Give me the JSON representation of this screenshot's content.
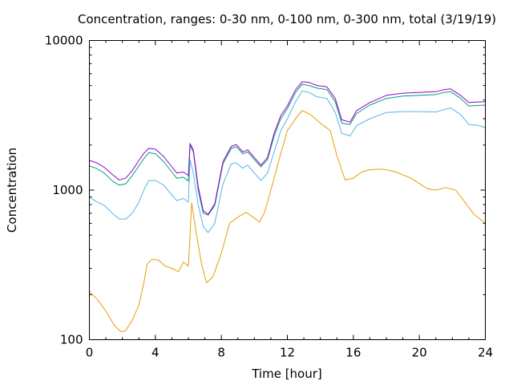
{
  "chart_data": {
    "type": "line",
    "title": "Concentration, ranges: 0-30 nm, 0-100 nm, 0-300 nm, total (3/19/19)",
    "xlabel": "Time [hour]",
    "ylabel": "Concentration",
    "xlim": [
      0,
      24
    ],
    "ylim": [
      100,
      10000
    ],
    "yscale": "log",
    "grid": false,
    "xticks": [
      0,
      4,
      8,
      12,
      16,
      20,
      24
    ],
    "xtick_labels": [
      "0",
      "4",
      "8",
      "12",
      "16",
      "20",
      "24"
    ],
    "yticks": [
      100,
      1000,
      10000
    ],
    "ytick_labels": [
      "100",
      "1000",
      "10000"
    ],
    "series": [
      {
        "color": "#e69f00",
        "points": [
          [
            0,
            210
          ],
          [
            0.5,
            185
          ],
          [
            1,
            155
          ],
          [
            1.5,
            125
          ],
          [
            1.9,
            113
          ],
          [
            2.2,
            115
          ],
          [
            2.6,
            135
          ],
          [
            3,
            170
          ],
          [
            3.3,
            240
          ],
          [
            3.5,
            320
          ],
          [
            3.8,
            345
          ],
          [
            4.2,
            340
          ],
          [
            4.6,
            310
          ],
          [
            5,
            300
          ],
          [
            5.4,
            285
          ],
          [
            5.7,
            330
          ],
          [
            6,
            310
          ],
          [
            6.2,
            820
          ],
          [
            6.5,
            500
          ],
          [
            6.8,
            320
          ],
          [
            7.1,
            240
          ],
          [
            7.5,
            265
          ],
          [
            8,
            380
          ],
          [
            8.5,
            600
          ],
          [
            9,
            660
          ],
          [
            9.5,
            710
          ],
          [
            10,
            650
          ],
          [
            10.3,
            610
          ],
          [
            10.6,
            700
          ],
          [
            11,
            1000
          ],
          [
            11.5,
            1600
          ],
          [
            12,
            2500
          ],
          [
            12.5,
            3000
          ],
          [
            12.9,
            3400
          ],
          [
            13.4,
            3200
          ],
          [
            14,
            2800
          ],
          [
            14.6,
            2500
          ],
          [
            15,
            1700
          ],
          [
            15.5,
            1170
          ],
          [
            16,
            1200
          ],
          [
            16.5,
            1320
          ],
          [
            17,
            1370
          ],
          [
            17.8,
            1380
          ],
          [
            18.5,
            1330
          ],
          [
            19.5,
            1200
          ],
          [
            20.5,
            1020
          ],
          [
            21,
            1000
          ],
          [
            21.6,
            1040
          ],
          [
            22.2,
            1000
          ],
          [
            22.8,
            820
          ],
          [
            23.3,
            690
          ],
          [
            24,
            600
          ]
        ]
      },
      {
        "color": "#56b4e9",
        "points": [
          [
            0,
            900
          ],
          [
            0.4,
            840
          ],
          [
            0.9,
            790
          ],
          [
            1.4,
            700
          ],
          [
            1.8,
            640
          ],
          [
            2.2,
            640
          ],
          [
            2.6,
            700
          ],
          [
            3,
            830
          ],
          [
            3.3,
            1000
          ],
          [
            3.6,
            1160
          ],
          [
            4,
            1160
          ],
          [
            4.5,
            1080
          ],
          [
            5,
            930
          ],
          [
            5.3,
            850
          ],
          [
            5.7,
            880
          ],
          [
            6,
            830
          ],
          [
            6.1,
            1600
          ],
          [
            6.3,
            1300
          ],
          [
            6.6,
            800
          ],
          [
            6.9,
            570
          ],
          [
            7.2,
            520
          ],
          [
            7.6,
            600
          ],
          [
            8.1,
            1100
          ],
          [
            8.6,
            1500
          ],
          [
            8.9,
            1520
          ],
          [
            9.3,
            1400
          ],
          [
            9.6,
            1470
          ],
          [
            10,
            1300
          ],
          [
            10.4,
            1160
          ],
          [
            10.8,
            1300
          ],
          [
            11.2,
            1800
          ],
          [
            11.6,
            2500
          ],
          [
            12,
            3000
          ],
          [
            12.5,
            3900
          ],
          [
            12.9,
            4600
          ],
          [
            13.3,
            4500
          ],
          [
            13.8,
            4200
          ],
          [
            14.4,
            4100
          ],
          [
            14.9,
            3300
          ],
          [
            15.3,
            2400
          ],
          [
            15.8,
            2300
          ],
          [
            16.2,
            2700
          ],
          [
            17,
            3000
          ],
          [
            18,
            3300
          ],
          [
            19,
            3350
          ],
          [
            20,
            3350
          ],
          [
            21,
            3330
          ],
          [
            21.5,
            3450
          ],
          [
            21.9,
            3550
          ],
          [
            22.5,
            3200
          ],
          [
            23,
            2750
          ],
          [
            23.5,
            2720
          ],
          [
            24,
            2620
          ]
        ]
      },
      {
        "color": "#009e73",
        "points": [
          [
            0,
            1450
          ],
          [
            0.4,
            1400
          ],
          [
            0.9,
            1300
          ],
          [
            1.4,
            1150
          ],
          [
            1.8,
            1080
          ],
          [
            2.2,
            1100
          ],
          [
            2.6,
            1250
          ],
          [
            3,
            1450
          ],
          [
            3.3,
            1620
          ],
          [
            3.6,
            1780
          ],
          [
            4,
            1750
          ],
          [
            4.5,
            1550
          ],
          [
            5,
            1320
          ],
          [
            5.3,
            1200
          ],
          [
            5.7,
            1220
          ],
          [
            6,
            1150
          ],
          [
            6.1,
            2000
          ],
          [
            6.3,
            1800
          ],
          [
            6.6,
            1000
          ],
          [
            6.9,
            700
          ],
          [
            7.2,
            680
          ],
          [
            7.6,
            790
          ],
          [
            8.1,
            1500
          ],
          [
            8.6,
            1900
          ],
          [
            8.9,
            1950
          ],
          [
            9.3,
            1750
          ],
          [
            9.6,
            1800
          ],
          [
            10,
            1600
          ],
          [
            10.4,
            1430
          ],
          [
            10.8,
            1600
          ],
          [
            11.2,
            2300
          ],
          [
            11.6,
            3000
          ],
          [
            12,
            3500
          ],
          [
            12.5,
            4500
          ],
          [
            12.9,
            5100
          ],
          [
            13.3,
            5000
          ],
          [
            13.8,
            4800
          ],
          [
            14.4,
            4700
          ],
          [
            14.9,
            3900
          ],
          [
            15.3,
            2800
          ],
          [
            15.8,
            2750
          ],
          [
            16.2,
            3250
          ],
          [
            17,
            3700
          ],
          [
            18,
            4100
          ],
          [
            19,
            4250
          ],
          [
            20,
            4300
          ],
          [
            21,
            4350
          ],
          [
            21.5,
            4500
          ],
          [
            21.9,
            4550
          ],
          [
            22.5,
            4100
          ],
          [
            23,
            3650
          ],
          [
            23.5,
            3680
          ],
          [
            24,
            3700
          ]
        ]
      },
      {
        "color": "#9400d3",
        "points": [
          [
            0,
            1580
          ],
          [
            0.4,
            1530
          ],
          [
            0.9,
            1420
          ],
          [
            1.4,
            1270
          ],
          [
            1.8,
            1170
          ],
          [
            2.2,
            1200
          ],
          [
            2.6,
            1350
          ],
          [
            3,
            1580
          ],
          [
            3.3,
            1760
          ],
          [
            3.6,
            1900
          ],
          [
            4,
            1880
          ],
          [
            4.5,
            1680
          ],
          [
            5,
            1430
          ],
          [
            5.3,
            1300
          ],
          [
            5.7,
            1320
          ],
          [
            6,
            1250
          ],
          [
            6.1,
            2050
          ],
          [
            6.3,
            1850
          ],
          [
            6.6,
            1050
          ],
          [
            6.9,
            730
          ],
          [
            7.2,
            690
          ],
          [
            7.6,
            810
          ],
          [
            8.1,
            1550
          ],
          [
            8.6,
            1960
          ],
          [
            8.9,
            2020
          ],
          [
            9.3,
            1800
          ],
          [
            9.6,
            1860
          ],
          [
            10,
            1650
          ],
          [
            10.4,
            1470
          ],
          [
            10.8,
            1650
          ],
          [
            11.2,
            2400
          ],
          [
            11.6,
            3150
          ],
          [
            12,
            3650
          ],
          [
            12.5,
            4700
          ],
          [
            12.9,
            5300
          ],
          [
            13.3,
            5250
          ],
          [
            13.8,
            5000
          ],
          [
            14.4,
            4900
          ],
          [
            14.9,
            4100
          ],
          [
            15.3,
            2950
          ],
          [
            15.8,
            2850
          ],
          [
            16.2,
            3400
          ],
          [
            17,
            3850
          ],
          [
            18,
            4300
          ],
          [
            19,
            4450
          ],
          [
            20,
            4500
          ],
          [
            21,
            4550
          ],
          [
            21.5,
            4700
          ],
          [
            21.9,
            4750
          ],
          [
            22.5,
            4300
          ],
          [
            23,
            3850
          ],
          [
            23.5,
            3880
          ],
          [
            24,
            3900
          ]
        ]
      }
    ]
  }
}
